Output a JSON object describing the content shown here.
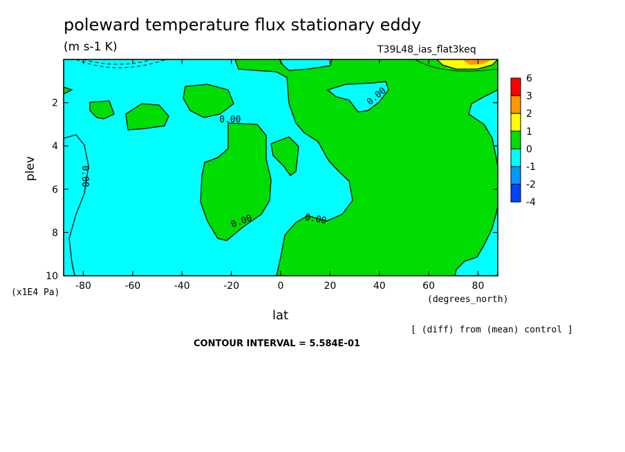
{
  "chart_data": {
    "type": "heatmap",
    "title": "poleward temperature flux stationary eddy",
    "units": "(m s-1 K)",
    "run_label": "T39L48_ias_flat3keq",
    "xlabel": "lat",
    "x_units": "(degrees_north)",
    "ylabel": "plev",
    "y_units": "(x1E4 Pa)",
    "xlim": [
      -88,
      88
    ],
    "ylim": [
      0,
      10
    ],
    "y_inverted": true,
    "x_ticks": [
      "-80",
      "-60",
      "-40",
      "-20",
      "0",
      "20",
      "40",
      "60",
      "80"
    ],
    "x_tick_values": [
      -80,
      -60,
      -40,
      -20,
      0,
      20,
      40,
      60,
      80
    ],
    "y_ticks": [
      "2",
      "4",
      "6",
      "8",
      "10"
    ],
    "y_tick_values": [
      2,
      4,
      6,
      8,
      10
    ],
    "contour_labels": [
      "0.00",
      "0.00",
      "0.00",
      "0.00",
      "0.00"
    ],
    "colorbar": {
      "levels": [
        "6",
        "3",
        "2",
        "1",
        "0",
        "-1",
        "-2",
        "-4"
      ],
      "colors": [
        "#ff0000",
        "#ff9900",
        "#ffff00",
        "#00dd00",
        "#00ffff",
        "#0099ff",
        "#0044ff"
      ]
    },
    "notes": {
      "diff": "[ (diff) from (mean) control ]",
      "contour_interval": "CONTOUR INTERVAL = 5.584E-01"
    }
  }
}
